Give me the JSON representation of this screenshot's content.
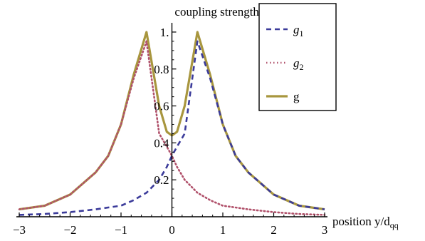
{
  "chart_data": {
    "type": "line",
    "title": "coupling strengths",
    "xlabel": "position y/d",
    "xlabel_sub": "qq",
    "ylabel": "",
    "xlim": [
      -3,
      3
    ],
    "ylim": [
      0,
      1.05
    ],
    "x_ticks": [
      "−3",
      "−2",
      "−1",
      "0",
      "1",
      "2",
      "3"
    ],
    "x_tick_values": [
      -3,
      -2,
      -1,
      0,
      1,
      2,
      3
    ],
    "y_ticks": [
      "0.2",
      "0.4",
      "0.6",
      "0.8",
      "1."
    ],
    "y_tick_values": [
      0.2,
      0.4,
      0.6,
      0.8,
      1.0
    ],
    "grid": false,
    "legend_position": "top-right",
    "x": [
      -3,
      -2.5,
      -2,
      -1.5,
      -1.25,
      -1,
      -0.75,
      -0.5,
      -0.25,
      -0.1,
      0,
      0.1,
      0.25,
      0.5,
      0.75,
      1,
      1.25,
      1.5,
      2,
      2.5,
      3
    ],
    "series": [
      {
        "name": "g",
        "name_sub": "1",
        "style": "dashed",
        "color": "#3b3b9a",
        "values": [
          0.01,
          0.015,
          0.025,
          0.04,
          0.05,
          0.06,
          0.09,
          0.13,
          0.2,
          0.27,
          0.33,
          0.38,
          0.45,
          0.95,
          0.75,
          0.5,
          0.33,
          0.24,
          0.12,
          0.06,
          0.04
        ]
      },
      {
        "name": "g",
        "name_sub": "2",
        "style": "dotted",
        "color": "#b0506a",
        "values": [
          0.04,
          0.06,
          0.12,
          0.24,
          0.33,
          0.5,
          0.75,
          0.95,
          0.45,
          0.38,
          0.33,
          0.27,
          0.2,
          0.13,
          0.09,
          0.06,
          0.05,
          0.04,
          0.025,
          0.015,
          0.01
        ]
      },
      {
        "name": "g",
        "name_sub": "",
        "style": "solid",
        "color": "#a8963e",
        "values": [
          0.04,
          0.06,
          0.12,
          0.24,
          0.33,
          0.5,
          0.77,
          1.0,
          0.6,
          0.46,
          0.44,
          0.46,
          0.6,
          1.0,
          0.77,
          0.5,
          0.33,
          0.24,
          0.12,
          0.06,
          0.04
        ]
      }
    ]
  }
}
